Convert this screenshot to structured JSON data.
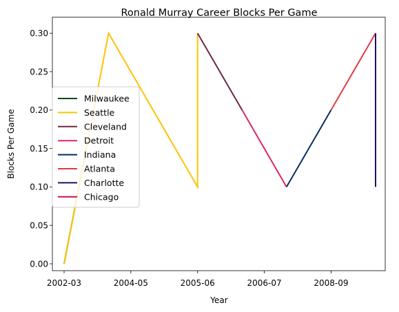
{
  "chart_data": {
    "type": "line",
    "title": "Ronald Murray Career Blocks Per Game",
    "xlabel": "Year",
    "ylabel": "Blocks Per Game",
    "x_ticks": [
      "2002-03",
      "2004-05",
      "2005-06",
      "2006-07",
      "2008-09"
    ],
    "y_ticks": [
      "0.00",
      "0.05",
      "0.10",
      "0.15",
      "0.20",
      "0.25",
      "0.30"
    ],
    "ylim": [
      -0.015,
      0.315
    ],
    "grid": false,
    "legend_position": "center-left",
    "series": [
      {
        "name": "Milwaukee",
        "color": "#00471B",
        "x": [
          0.0,
          0.5
        ],
        "y": [
          0.0,
          0.15
        ]
      },
      {
        "name": "Seattle",
        "color": "#FFC200",
        "x": [
          0.0,
          1.0,
          3.0,
          3.0
        ],
        "y": [
          0.0,
          0.3,
          0.1,
          0.3
        ]
      },
      {
        "name": "Cleveland",
        "color": "#6F263D",
        "x": [
          3.0,
          3.5,
          4.0
        ],
        "y": [
          0.3,
          0.25,
          0.2
        ]
      },
      {
        "name": "Detroit",
        "color": "#E0245E",
        "x": [
          4.0,
          4.5,
          5.0
        ],
        "y": [
          0.2,
          0.15,
          0.1
        ]
      },
      {
        "name": "Indiana",
        "color": "#002D62",
        "x": [
          5.0,
          6.0
        ],
        "y": [
          0.1,
          0.2
        ]
      },
      {
        "name": "Atlanta",
        "color": "#E03A3E",
        "x": [
          6.0,
          7.0
        ],
        "y": [
          0.2,
          0.3
        ]
      },
      {
        "name": "Charlotte",
        "color": "#1D1160",
        "x": [
          7.0,
          7.0
        ],
        "y": [
          0.3,
          0.1
        ]
      },
      {
        "name": "Chicago",
        "color": "#CE1141",
        "x": [],
        "y": []
      }
    ]
  }
}
